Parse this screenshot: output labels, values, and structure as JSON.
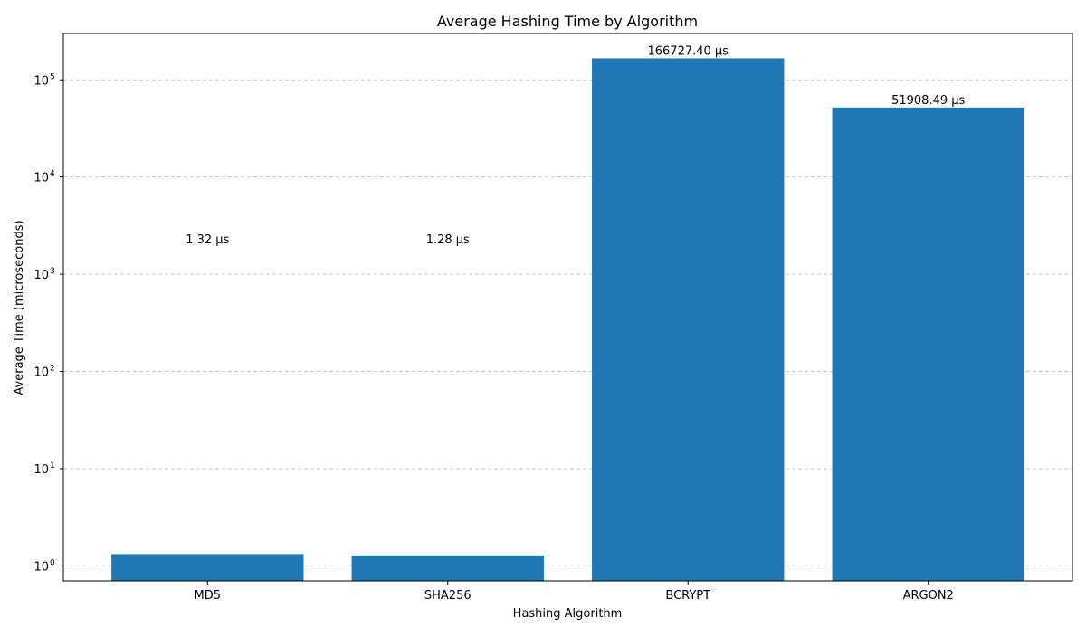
{
  "chart_data": {
    "type": "bar",
    "title": "Average Hashing Time by Algorithm",
    "xlabel": "Hashing Algorithm",
    "ylabel": "Average Time (microseconds)",
    "categories": [
      "MD5",
      "SHA256",
      "BCRYPT",
      "ARGON2"
    ],
    "values": [
      1.32,
      1.28,
      166727.4,
      51908.49
    ],
    "value_labels": [
      "1.32 µs",
      "1.28 µs",
      "166727.40 µs",
      "51908.49 µs"
    ],
    "yscale": "log",
    "ylim": [
      0.7,
      300000
    ],
    "yticks": [
      1,
      10,
      100,
      1000,
      10000,
      100000
    ],
    "ytick_bases": [
      "10",
      "10",
      "10",
      "10",
      "10",
      "10"
    ],
    "ytick_exponents": [
      "0",
      "1",
      "2",
      "3",
      "4",
      "5"
    ],
    "grid": "y",
    "bar_color": "#1f77b4",
    "grid_color": "#c8c8c8"
  }
}
